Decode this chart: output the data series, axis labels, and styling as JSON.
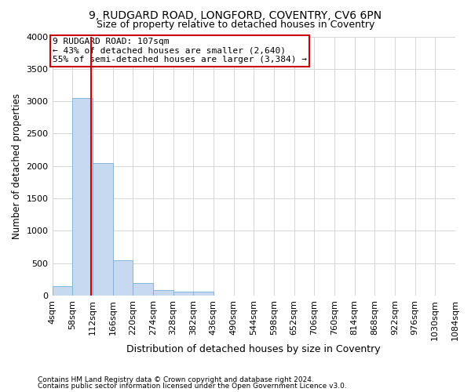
{
  "title1": "9, RUDGARD ROAD, LONGFORD, COVENTRY, CV6 6PN",
  "title2": "Size of property relative to detached houses in Coventry",
  "xlabel": "Distribution of detached houses by size in Coventry",
  "ylabel": "Number of detached properties",
  "footnote1": "Contains HM Land Registry data © Crown copyright and database right 2024.",
  "footnote2": "Contains public sector information licensed under the Open Government Licence v3.0.",
  "bin_edges": [
    4,
    58,
    112,
    166,
    220,
    274,
    328,
    382,
    436,
    490,
    544,
    598,
    652,
    706,
    760,
    814,
    868,
    922,
    976,
    1030,
    1084
  ],
  "bar_heights": [
    150,
    3050,
    2050,
    550,
    200,
    80,
    60,
    60,
    0,
    0,
    0,
    0,
    0,
    0,
    0,
    0,
    0,
    0,
    0,
    0
  ],
  "bar_color": "#c6d9f0",
  "bar_edgecolor": "#7bafd4",
  "property_size": 107,
  "property_label": "9 RUDGARD ROAD: 107sqm",
  "annotation_line1": "← 43% of detached houses are smaller (2,640)",
  "annotation_line2": "55% of semi-detached houses are larger (3,384) →",
  "annotation_box_color": "#cc0000",
  "vline_color": "#cc0000",
  "ylim": [
    0,
    4000
  ],
  "yticks": [
    0,
    500,
    1000,
    1500,
    2000,
    2500,
    3000,
    3500,
    4000
  ],
  "background_color": "#ffffff",
  "grid_color": "#d0d0d0",
  "tick_label_fontsize": 8,
  "ylabel_fontsize": 8.5,
  "xlabel_fontsize": 9,
  "title1_fontsize": 10,
  "title2_fontsize": 9,
  "annotation_fontsize": 8,
  "footnote_fontsize": 6.5
}
